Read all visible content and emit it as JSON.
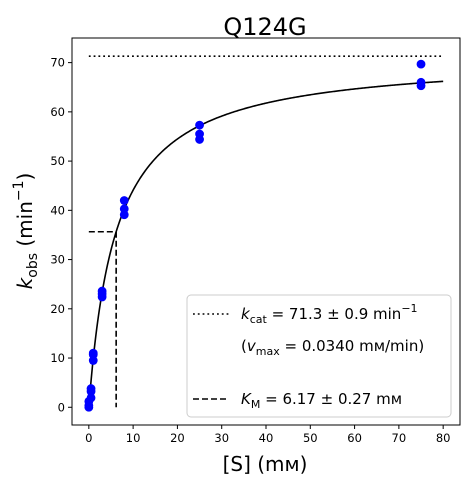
{
  "chart_data": {
    "type": "scatter",
    "title": "Q124G",
    "xlabel": "[S] (mᴍ)",
    "ylabel": {
      "base": "k",
      "sub": "obs",
      "rest": " (min",
      "sup": "−1",
      "close": ")"
    },
    "xlim": [
      -3.8,
      83.8
    ],
    "ylim": [
      -3.6,
      75
    ],
    "xticks": [
      0,
      10,
      20,
      30,
      40,
      50,
      60,
      70,
      80
    ],
    "yticks": [
      0,
      10,
      20,
      30,
      40,
      50,
      60,
      70
    ],
    "grid": false,
    "legend_position": "lower-right",
    "points_color": "#0000ff",
    "line_color": "#000000",
    "series": [
      {
        "kind": "points",
        "x": [
          0,
          0,
          0,
          0.5,
          0.5,
          0.5,
          1,
          1,
          1,
          3,
          3,
          3,
          8,
          8,
          8,
          25,
          25,
          25,
          75,
          75,
          75
        ],
        "y": [
          0.0,
          1.2,
          0.4,
          3.2,
          3.8,
          1.9,
          9.5,
          10.7,
          11.0,
          22.4,
          23.0,
          23.6,
          39.1,
          40.3,
          42.0,
          54.4,
          55.5,
          57.3,
          65.3,
          66.0,
          69.7
        ]
      },
      {
        "kind": "michaelis-menten-fit",
        "kcat": 71.3,
        "km": 6.17,
        "x_range": [
          0,
          80
        ]
      },
      {
        "kind": "kcat-line",
        "y": 71.3,
        "x_range": [
          0,
          80
        ]
      },
      {
        "kind": "km-line",
        "x": 6.17,
        "y": 35.65
      }
    ],
    "legend": [
      {
        "style": "dotted",
        "main": {
          "k": "k",
          "sub": "cat",
          "text": " = 71.3 ± 0.9 min",
          "sup": "−1"
        },
        "second": {
          "open": "(",
          "v": "v",
          "sub": "max",
          "text": " = 0.0340 mᴍ/min)"
        }
      },
      {
        "style": "dashed",
        "main": {
          "k": "K",
          "sub": "M",
          "text": " = 6.17 ± 0.27 mᴍ"
        }
      }
    ]
  }
}
